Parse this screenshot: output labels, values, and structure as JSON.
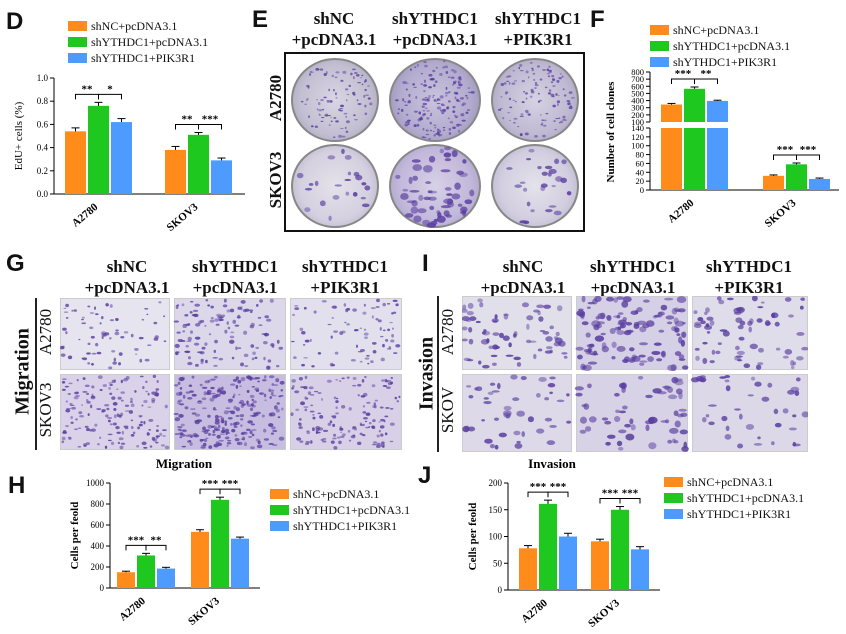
{
  "colors": {
    "shNC": "#ff8c1a",
    "shYTHDC1": "#1ec81e",
    "shPIK3R1": "#4d9bff",
    "crystal_violet": "#5a3fa0"
  },
  "panels": {
    "D": {
      "letter": "D"
    },
    "E": {
      "letter": "E"
    },
    "F": {
      "letter": "F"
    },
    "G": {
      "letter": "G"
    },
    "H": {
      "letter": "H"
    },
    "I": {
      "letter": "I"
    },
    "J": {
      "letter": "J"
    }
  },
  "legend": [
    "shNC+pcDNA3.1",
    "shYTHDC1+pcDNA3.1",
    "shYTHDC1+PIK3R1"
  ],
  "column_headers": [
    [
      "shNC",
      "+pcDNA3.1"
    ],
    [
      "shYTHDC1",
      "+pcDNA3.1"
    ],
    [
      "shYTHDC1",
      "+PIK3R1"
    ]
  ],
  "cell_lines": {
    "a2780": "A2780",
    "skov3": "SKOV3",
    "skov_trunc": "SKOV"
  },
  "group_labels": {
    "migration": "Migration",
    "invasion": "Invasion"
  },
  "chart_data": [
    {
      "panel": "D",
      "type": "bar",
      "ylabel": "EdU+ cells (%)",
      "categories": [
        "A2780",
        "SKOV3"
      ],
      "ylim": [
        0,
        1.0
      ],
      "yticks": [
        "0.0",
        "0.2",
        "0.4",
        "0.6",
        "0.8",
        "1.0"
      ],
      "series": [
        {
          "name": "shNC+pcDNA3.1",
          "values": [
            0.54,
            0.38
          ],
          "errors": [
            0.03,
            0.03
          ]
        },
        {
          "name": "shYTHDC1+pcDNA3.1",
          "values": [
            0.76,
            0.51
          ],
          "errors": [
            0.03,
            0.02
          ]
        },
        {
          "name": "shYTHDC1+PIK3R1",
          "values": [
            0.62,
            0.29
          ],
          "errors": [
            0.03,
            0.02
          ]
        }
      ],
      "significance": [
        [
          "**",
          "*"
        ],
        [
          "**",
          "***"
        ]
      ]
    },
    {
      "panel": "F",
      "type": "bar",
      "ylabel": "Number of cell clones",
      "categories": [
        "A2780",
        "SKOV3"
      ],
      "broken_axis": {
        "upper": [
          100,
          800
        ],
        "lower": [
          0,
          140
        ]
      },
      "yticks_upper": [
        "100",
        "200",
        "300",
        "400",
        "500",
        "600",
        "700",
        "800"
      ],
      "yticks_lower": [
        "0",
        "20",
        "40",
        "60",
        "80",
        "100",
        "120",
        "140"
      ],
      "series": [
        {
          "name": "shNC+pcDNA3.1",
          "values": [
            345,
            32
          ],
          "errors": [
            15,
            2
          ]
        },
        {
          "name": "shYTHDC1+pcDNA3.1",
          "values": [
            565,
            58
          ],
          "errors": [
            25,
            3
          ]
        },
        {
          "name": "shYTHDC1+PIK3R1",
          "values": [
            395,
            25
          ],
          "errors": [
            10,
            2
          ]
        }
      ],
      "significance": [
        [
          "***",
          "**"
        ],
        [
          "***",
          "***"
        ]
      ]
    },
    {
      "panel": "H",
      "type": "bar",
      "title": "Migration",
      "ylabel": "Cells per feold",
      "categories": [
        "A2780",
        "SKOV3"
      ],
      "ylim": [
        0,
        1000
      ],
      "yticks": [
        "0",
        "200",
        "400",
        "600",
        "800",
        "1000"
      ],
      "series": [
        {
          "name": "shNC+pcDNA3.1",
          "values": [
            150,
            535
          ],
          "errors": [
            10,
            20
          ]
        },
        {
          "name": "shYTHDC1+pcDNA3.1",
          "values": [
            310,
            840
          ],
          "errors": [
            20,
            25
          ]
        },
        {
          "name": "shYTHDC1+PIK3R1",
          "values": [
            185,
            470
          ],
          "errors": [
            12,
            15
          ]
        }
      ],
      "significance": [
        [
          "***",
          "**"
        ],
        [
          "***",
          "***"
        ]
      ]
    },
    {
      "panel": "J",
      "type": "bar",
      "title": "Invasion",
      "ylabel": "Cells per feold",
      "categories": [
        "A2780",
        "SKOV3"
      ],
      "ylim": [
        0,
        200
      ],
      "yticks": [
        "0",
        "50",
        "100",
        "150",
        "200"
      ],
      "series": [
        {
          "name": "shNC+pcDNA3.1",
          "values": [
            78,
            91
          ],
          "errors": [
            5,
            4
          ]
        },
        {
          "name": "shYTHDC1+pcDNA3.1",
          "values": [
            161,
            150
          ],
          "errors": [
            7,
            6
          ]
        },
        {
          "name": "shYTHDC1+PIK3R1",
          "values": [
            100,
            76
          ],
          "errors": [
            6,
            5
          ]
        }
      ],
      "significance": [
        [
          "***",
          "***"
        ],
        [
          "***",
          "***"
        ]
      ]
    }
  ]
}
